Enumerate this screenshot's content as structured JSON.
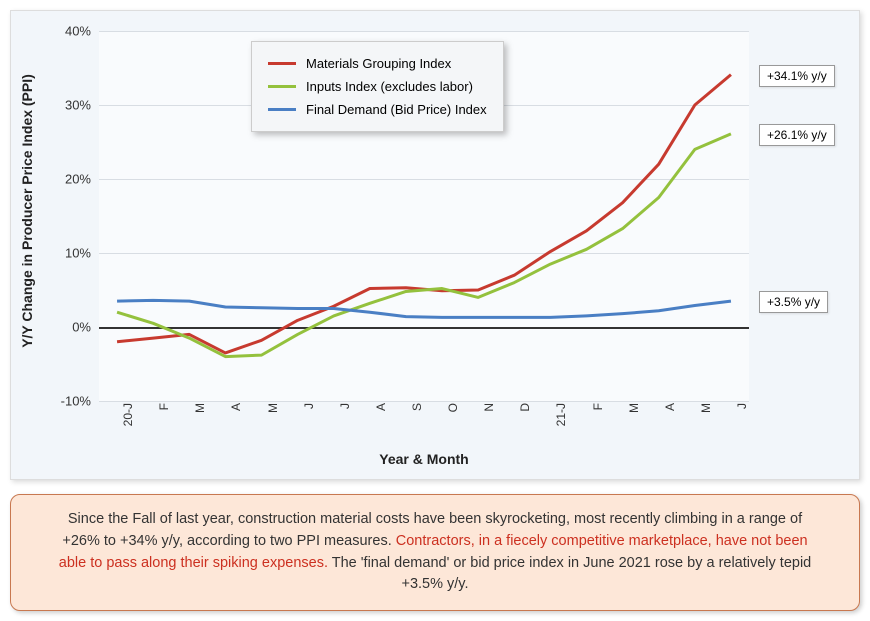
{
  "chart": {
    "type": "line",
    "background_color": "#f2f6fa",
    "plot_background": "#f9fbfd",
    "grid_color": "#d8dde3",
    "zero_line_color": "#333333",
    "y_axis": {
      "title": "Y/Y Change in Producer Price Index (PPI)",
      "lim": [
        -10,
        40
      ],
      "ticks": [
        -10,
        0,
        10,
        20,
        30,
        40
      ],
      "tick_labels": [
        "-10%",
        "0%",
        "10%",
        "20%",
        "30%",
        "40%"
      ],
      "fontsize": 13,
      "title_fontsize": 14
    },
    "x_axis": {
      "title": "Year & Month",
      "categories": [
        "20-J",
        "F",
        "M",
        "A",
        "M",
        "J",
        "J",
        "A",
        "S",
        "O",
        "N",
        "D",
        "21-J",
        "F",
        "M",
        "A",
        "M",
        "J"
      ],
      "fontsize": 12,
      "title_fontsize": 14
    },
    "series": [
      {
        "name": "Materials Grouping Index",
        "color": "#c73a2f",
        "line_width": 3,
        "values": [
          -2.0,
          -1.5,
          -1.0,
          -3.5,
          -1.8,
          0.9,
          2.8,
          5.2,
          5.3,
          4.9,
          5.0,
          7.0,
          10.2,
          13.0,
          16.8,
          22.0,
          30.0,
          34.1
        ],
        "callout": "+34.1% y/y"
      },
      {
        "name": "Inputs Index (excludes labor)",
        "color": "#94c13d",
        "line_width": 3,
        "values": [
          2.0,
          0.5,
          -1.5,
          -4.0,
          -3.8,
          -1.0,
          1.5,
          3.2,
          4.8,
          5.2,
          4.0,
          6.0,
          8.5,
          10.5,
          13.3,
          17.5,
          24.0,
          26.1
        ],
        "callout": "+26.1% y/y"
      },
      {
        "name": "Final Demand (Bid Price) Index",
        "color": "#4a7fc4",
        "line_width": 3,
        "values": [
          3.5,
          3.6,
          3.5,
          2.7,
          2.6,
          2.5,
          2.5,
          2.0,
          1.4,
          1.3,
          1.3,
          1.3,
          1.3,
          1.5,
          1.8,
          2.2,
          2.9,
          3.5
        ],
        "callout": "+3.5% y/y"
      }
    ],
    "legend": {
      "background": "#f4f6f8",
      "border_color": "#cccccc",
      "fontsize": 13
    }
  },
  "caption": {
    "background": "#fde7d8",
    "border_color": "#c87850",
    "fontsize": 14.5,
    "text_before": "Since the Fall of last year, construction material costs have been skyrocketing, most recently climbing in a range of +26% to +34% y/y, according to two PPI measures. ",
    "highlight": "Contractors, in a fiecely competitive marketplace, have not been able to pass along their spiking expenses.",
    "text_after": " The 'final demand' or bid price index in June 2021 rose by a relatively tepid +3.5% y/y.",
    "highlight_color": "#cc3020"
  }
}
